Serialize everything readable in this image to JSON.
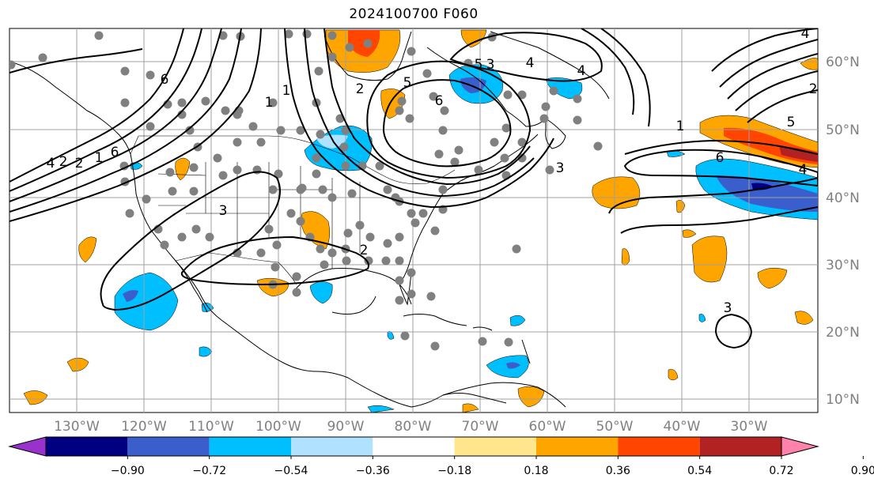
{
  "title": "2024100700 F060",
  "longitude_labels": [
    "130°W",
    "120°W",
    "110°W",
    "100°W",
    "90°W",
    "80°W",
    "70°W",
    "60°W",
    "50°W",
    "40°W",
    "30°W"
  ],
  "latitude_labels": [
    "60°N",
    "50°N",
    "40°N",
    "30°N",
    "20°N",
    "10°N"
  ],
  "colorbar": {
    "tick_labels": [
      "−0.90",
      "−0.72",
      "−0.54",
      "−0.36",
      "−0.18",
      "0.18",
      "0.36",
      "0.54",
      "0.72",
      "0.90"
    ],
    "colors": [
      "#9932cc",
      "#000080",
      "#3a5fcd",
      "#00bfff",
      "#b0e2ff",
      "#ffffff",
      "#ffe68c",
      "#ffa500",
      "#ff4500",
      "#b22222",
      "#ff82ab"
    ]
  },
  "contour_labels": [
    "6",
    "5",
    "4",
    "3",
    "2",
    "1",
    "6",
    "5",
    "4",
    "3",
    "2",
    "1",
    "6",
    "5",
    "4",
    "3",
    "2",
    "1",
    "6",
    "4",
    "2",
    "4",
    "2",
    "3",
    "1"
  ],
  "colors": {
    "grid": "#a0a0a0",
    "coast": "#000000",
    "station": "#808080",
    "contour": "#000000"
  }
}
